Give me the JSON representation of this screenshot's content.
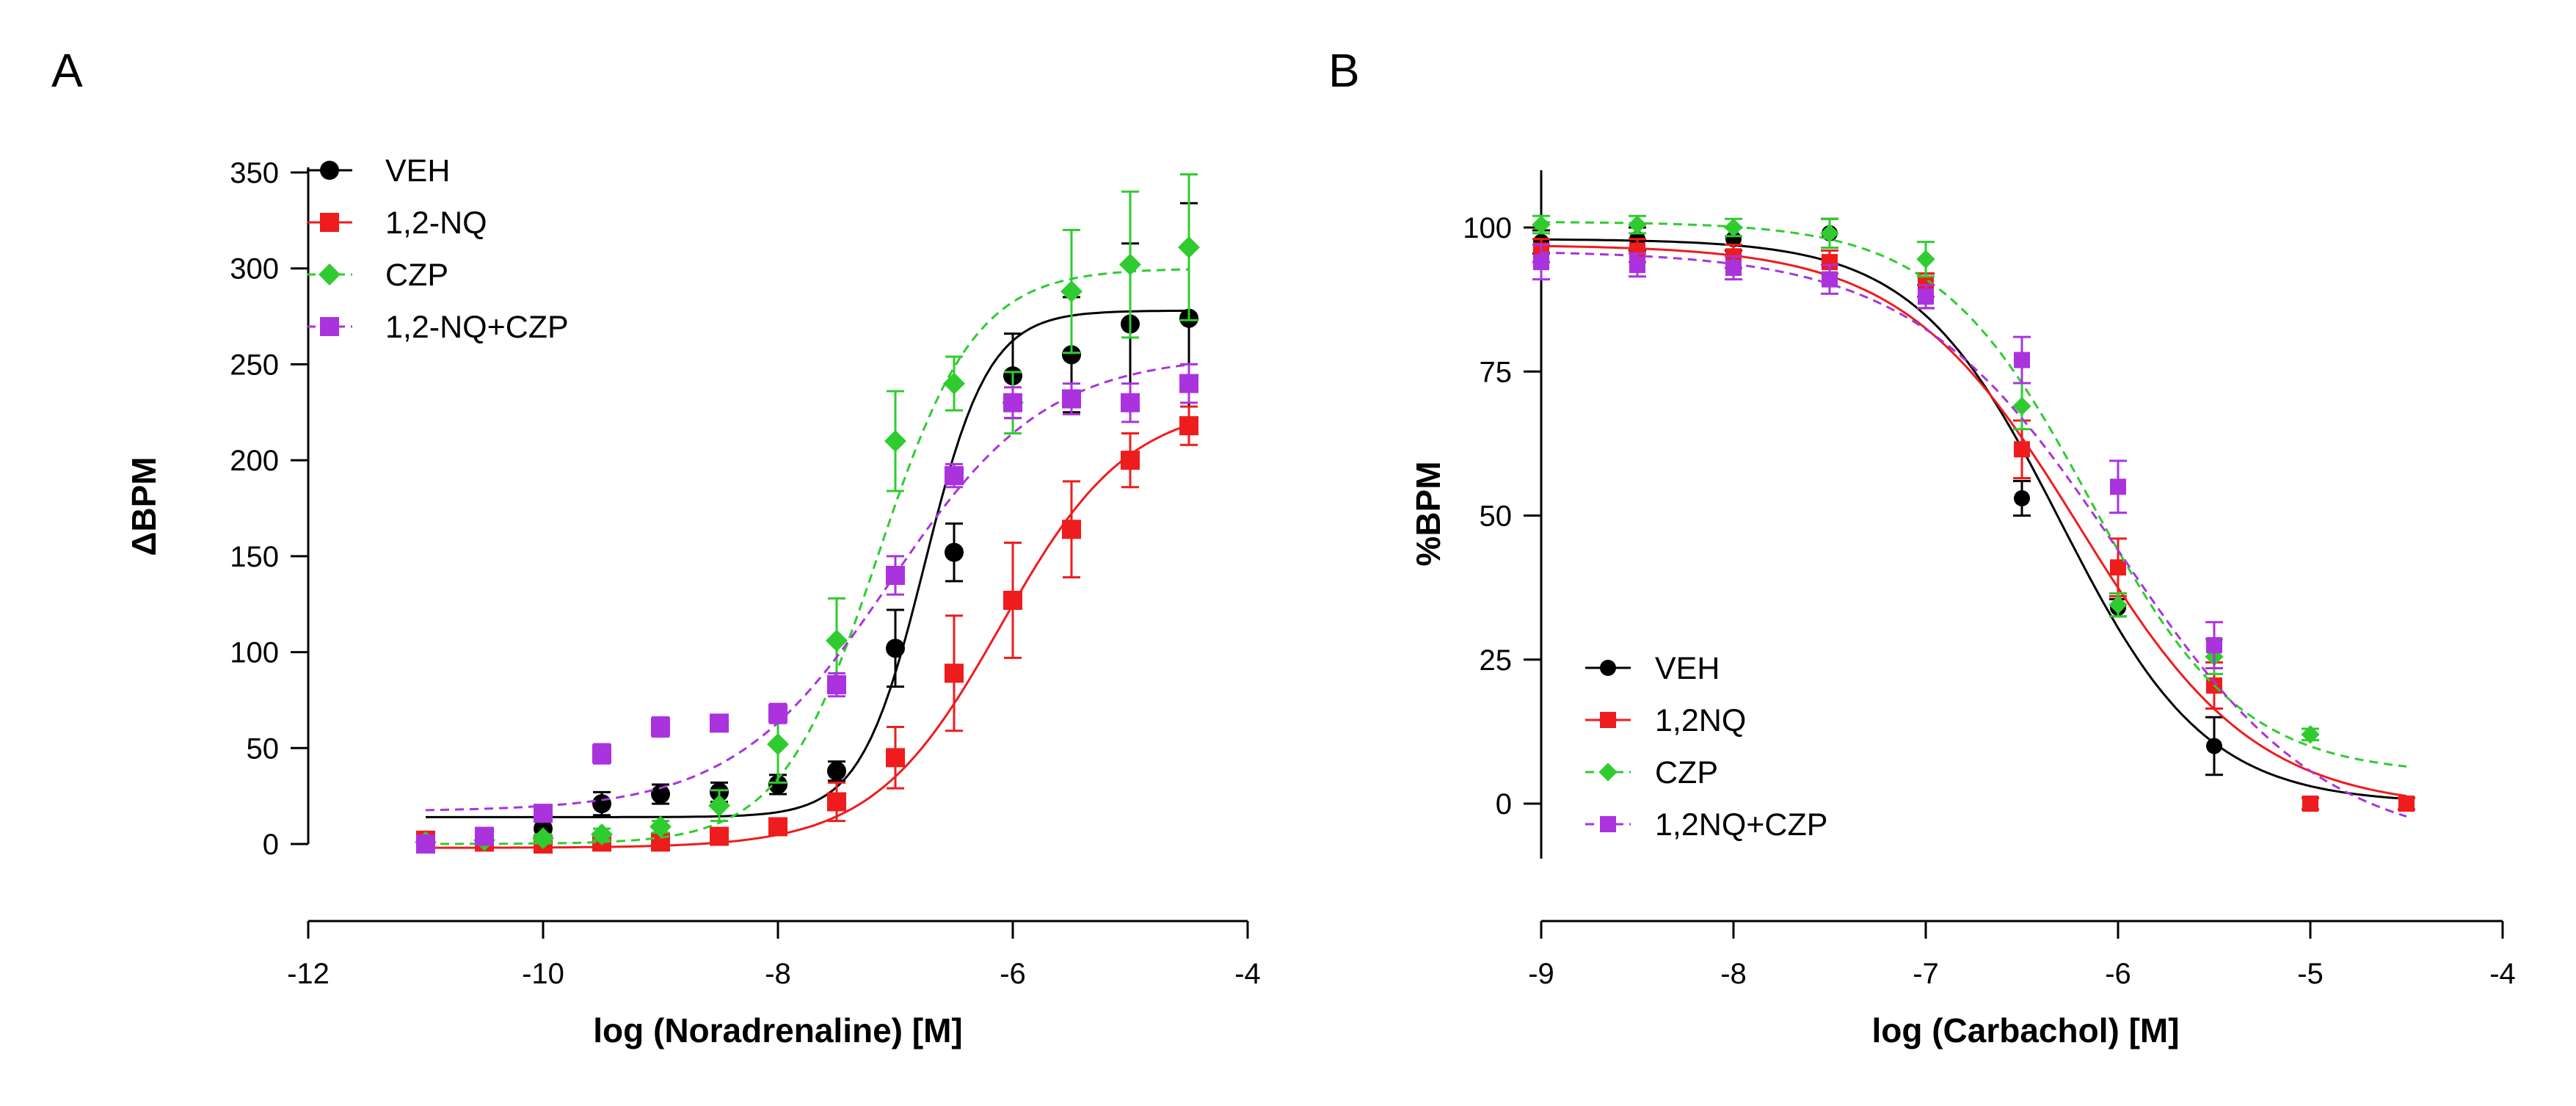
{
  "chart_data": [
    {
      "type": "scatter",
      "panel": "A",
      "title": "",
      "xlabel": "log (Noradrenaline) [M]",
      "ylabel": "ΔBPM",
      "xlim": [
        -12,
        -4
      ],
      "ylim": [
        0,
        350
      ],
      "xticks": [
        -12,
        -10,
        -8,
        -6,
        -4
      ],
      "yticks": [
        0,
        50,
        100,
        150,
        200,
        250,
        300,
        350
      ],
      "xtick_labels": [
        "-12",
        "-10",
        "-8",
        "-6",
        "-4"
      ],
      "ytick_labels": [
        "0",
        "50",
        "100",
        "150",
        "200",
        "250",
        "300",
        "350"
      ],
      "legend_position": "top-left",
      "series": [
        {
          "name": "VEH",
          "color": "#000000",
          "marker": "circle",
          "line": "solid",
          "x": [
            -11,
            -10.5,
            -10,
            -9.5,
            -9,
            -8.5,
            -8,
            -7.5,
            -7,
            -6.5,
            -6,
            -5.5,
            -5,
            -4.5
          ],
          "y": [
            2,
            2,
            8,
            21,
            26,
            27,
            31,
            38,
            102,
            152,
            244,
            255,
            271,
            274
          ],
          "err": [
            4,
            3,
            6,
            6,
            5,
            5,
            5,
            5,
            20,
            15,
            22,
            30,
            42,
            60
          ],
          "fit": {
            "bottom": 14,
            "top": 278,
            "logec50": -6.75,
            "hill": 1.6
          }
        },
        {
          "name": "1,2-NQ",
          "color": "#ee1c1c",
          "marker": "square",
          "line": "solid",
          "x": [
            -11,
            -10.5,
            -10,
            -9.5,
            -9,
            -8.5,
            -8,
            -7.5,
            -7,
            -6.5,
            -6,
            -5.5,
            -5,
            -4.5
          ],
          "y": [
            2,
            1,
            0,
            1,
            1,
            4,
            9,
            22,
            45,
            89,
            127,
            164,
            200,
            218
          ],
          "err": [
            2,
            2,
            2,
            2,
            2,
            3,
            4,
            10,
            16,
            30,
            30,
            25,
            14,
            10
          ],
          "fit": {
            "bottom": -2,
            "top": 230,
            "logec50": -6.1,
            "hill": 0.8
          }
        },
        {
          "name": "CZP",
          "color": "#2ecc2e",
          "marker": "diamond",
          "line": "dashed",
          "x": [
            -11,
            -10.5,
            -10,
            -9.5,
            -9,
            -8.5,
            -8,
            -7.5,
            -7,
            -6.5,
            -6,
            -5.5,
            -5,
            -4.5
          ],
          "y": [
            1,
            2,
            3,
            5,
            9,
            20,
            52,
            106,
            210,
            240,
            230,
            288,
            302,
            311
          ],
          "err": [
            2,
            2,
            2,
            3,
            3,
            8,
            20,
            22,
            26,
            14,
            16,
            32,
            38,
            38
          ],
          "fit": {
            "bottom": 0,
            "top": 300,
            "logec50": -7.15,
            "hill": 1.05
          }
        },
        {
          "name": "1,2-NQ+CZP",
          "color": "#aa33dd",
          "marker": "square",
          "line": "dashed",
          "x": [
            -11,
            -10.5,
            -10,
            -9.5,
            -9,
            -8.5,
            -8,
            -7.5,
            -7,
            -6.5,
            -6,
            -5.5,
            -5,
            -4.5
          ],
          "y": [
            0,
            4,
            16,
            47,
            61,
            63,
            68,
            83,
            140,
            192,
            230,
            232,
            230,
            240
          ],
          "err": [
            3,
            3,
            4,
            5,
            5,
            4,
            5,
            6,
            10,
            6,
            8,
            8,
            10,
            10
          ],
          "fit": {
            "bottom": 17,
            "top": 255,
            "logec50": -7.05,
            "hill": 0.65
          }
        }
      ]
    },
    {
      "type": "scatter",
      "panel": "B",
      "title": "",
      "xlabel": "log (Carbachol) [M]",
      "ylabel": "%BPM",
      "xlim": [
        -9,
        -4
      ],
      "ylim": [
        -10,
        110
      ],
      "xticks": [
        -9,
        -8,
        -7,
        -6,
        -5,
        -4
      ],
      "yticks": [
        0,
        25,
        50,
        75,
        100
      ],
      "xtick_labels": [
        "-9",
        "-8",
        "-7",
        "-6",
        "-5",
        "-4"
      ],
      "ytick_labels": [
        "0",
        "25",
        "50",
        "75",
        "100"
      ],
      "legend_position": "bottom-left",
      "series": [
        {
          "name": "VEH",
          "color": "#000000",
          "marker": "circle",
          "line": "solid",
          "x": [
            -9,
            -8.5,
            -8,
            -7.5,
            -7,
            -6.5,
            -6,
            -5.5,
            -5,
            -4.5
          ],
          "y": [
            97.5,
            98,
            98,
            99,
            89,
            53,
            34,
            10,
            0,
            0
          ],
          "err": [
            2,
            2,
            2,
            2.5,
            3,
            3,
            1.5,
            5,
            1,
            1
          ],
          "fit": {
            "top": 98,
            "bottom": 0,
            "logic50": -6.3,
            "hill": 1.15
          }
        },
        {
          "name": "1,2NQ",
          "color": "#ee1c1c",
          "marker": "square",
          "line": "solid",
          "x": [
            -9,
            -8.5,
            -8,
            -7.5,
            -7,
            -6.5,
            -6,
            -5.5,
            -5,
            -4.5
          ],
          "y": [
            96,
            96,
            95,
            94,
            90,
            61.5,
            41,
            20.5,
            0,
            0
          ],
          "err": [
            2,
            2,
            2,
            2,
            2,
            5,
            5,
            4,
            1,
            1
          ],
          "fit": {
            "top": 97,
            "bottom": -1,
            "logic50": -6.2,
            "hill": 0.95
          }
        },
        {
          "name": "CZP",
          "color": "#2ecc2e",
          "marker": "diamond",
          "line": "dashed",
          "x": [
            -9,
            -8.5,
            -8,
            -7.5,
            -7,
            -6.5,
            -6,
            -5.5,
            -5
          ],
          "y": [
            100.5,
            100.5,
            100,
            99,
            94.5,
            69,
            34.5,
            25.5,
            12
          ],
          "err": [
            1.5,
            1.5,
            1.5,
            2.5,
            3,
            4,
            2,
            3,
            1
          ],
          "fit": {
            "top": 101,
            "bottom": 5,
            "logic50": -6.15,
            "hill": 1.1
          }
        },
        {
          "name": "1,2NQ+CZP",
          "color": "#aa33dd",
          "marker": "square",
          "line": "dashed",
          "x": [
            -9,
            -8.5,
            -8,
            -7.5,
            -7,
            -6.5,
            -6,
            -5.5
          ],
          "y": [
            94,
            93.5,
            93,
            91,
            88,
            77,
            55,
            27.5
          ],
          "err": [
            3,
            2,
            2,
            2.5,
            2,
            4,
            4.5,
            4
          ],
          "fit": {
            "top": 96,
            "bottom": -8,
            "logic50": -6.0,
            "hill": 0.82
          }
        }
      ]
    }
  ],
  "panels": [
    {
      "letter": "A"
    },
    {
      "letter": "B"
    }
  ]
}
